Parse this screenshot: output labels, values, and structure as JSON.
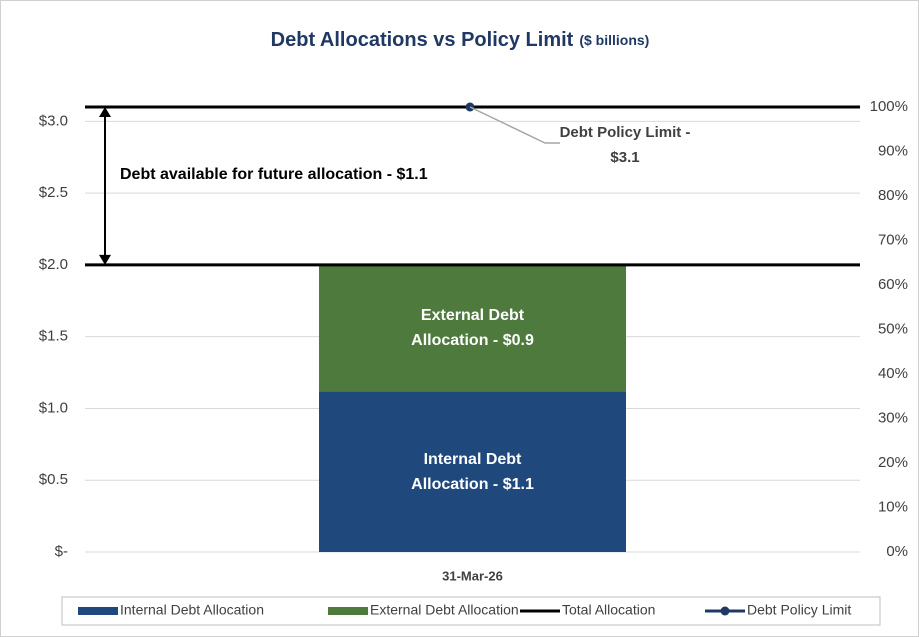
{
  "chart_data": {
    "type": "bar",
    "stacked": true,
    "title": "Debt Allocations vs Policy Limit",
    "subtitle": "($ billions)",
    "categories": [
      "31-Mar-26"
    ],
    "series": [
      {
        "name": "Internal Debt Allocation",
        "type": "bar",
        "color": "#1f497d",
        "values": [
          1.12
        ],
        "value_labels": [
          "Internal Debt\nAllocation -  $1.1"
        ]
      },
      {
        "name": "External Debt Allocation",
        "type": "bar",
        "color": "#4e7a3e",
        "values": [
          0.88
        ],
        "value_labels": [
          "External Debt\nAllocation -  $0.9"
        ]
      },
      {
        "name": "Total Allocation",
        "type": "line",
        "color": "#000000",
        "values": [
          2.0
        ]
      },
      {
        "name": "Debt Policy Limit",
        "type": "line",
        "marker": true,
        "color": "#1f3864",
        "values": [
          3.1
        ]
      }
    ],
    "annotations": [
      {
        "text": "Debt available for future allocation - $1.1"
      },
      {
        "text": "Debt Policy Limit -\n$3.1"
      }
    ],
    "ylim": [
      0,
      3.1
    ],
    "yticks": [
      {
        "value": 0,
        "label": "$-"
      },
      {
        "value": 0.5,
        "label": "$0.5"
      },
      {
        "value": 1.0,
        "label": "$1.0"
      },
      {
        "value": 1.5,
        "label": "$1.5"
      },
      {
        "value": 2.0,
        "label": "$2.0"
      },
      {
        "value": 2.5,
        "label": "$2.5"
      },
      {
        "value": 3.0,
        "label": "$3.0"
      }
    ],
    "y2lim": [
      0,
      100
    ],
    "y2ticks": [
      {
        "value": 0,
        "label": "0%"
      },
      {
        "value": 10,
        "label": "10%"
      },
      {
        "value": 20,
        "label": "20%"
      },
      {
        "value": 30,
        "label": "30%"
      },
      {
        "value": 40,
        "label": "40%"
      },
      {
        "value": 50,
        "label": "50%"
      },
      {
        "value": 60,
        "label": "60%"
      },
      {
        "value": 70,
        "label": "70%"
      },
      {
        "value": 80,
        "label": "80%"
      },
      {
        "value": 90,
        "label": "90%"
      },
      {
        "value": 100,
        "label": "100%"
      }
    ],
    "grid": true,
    "legend": "bottom"
  }
}
